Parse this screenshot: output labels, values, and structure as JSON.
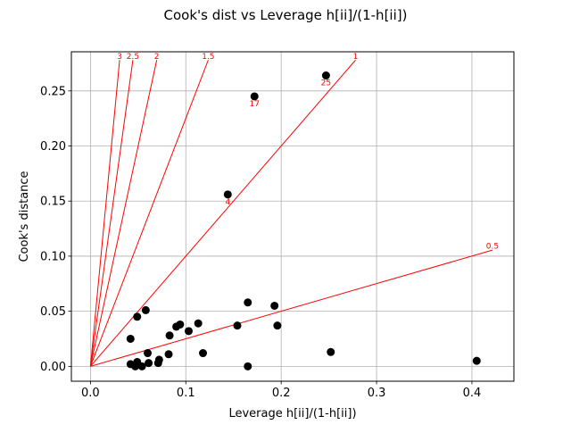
{
  "chart_data": {
    "type": "scatter",
    "title": "Cook's dist vs Leverage h[ii]/(1-h[ii])",
    "xlabel": "Leverage h[ii]/(1-h[ii])",
    "ylabel": "Cook's distance",
    "xlim": [
      -0.02,
      0.444
    ],
    "ylim": [
      -0.0135,
      0.2855
    ],
    "xticks": [
      0.0,
      0.1,
      0.2,
      0.3,
      0.4
    ],
    "xtick_labels": [
      "0.0",
      "0.1",
      "0.2",
      "0.3",
      "0.4"
    ],
    "yticks": [
      0.0,
      0.05,
      0.1,
      0.15,
      0.2,
      0.25
    ],
    "ytick_labels": [
      "0.00",
      "0.05",
      "0.10",
      "0.15",
      "0.20",
      "0.25"
    ],
    "grid": true,
    "point_color": "#000000",
    "line_color": "#ff0000",
    "points": [
      {
        "x": 0.405,
        "y": 0.005
      },
      {
        "x": 0.252,
        "y": 0.013
      },
      {
        "x": 0.247,
        "y": 0.264,
        "label": "25"
      },
      {
        "x": 0.196,
        "y": 0.037
      },
      {
        "x": 0.193,
        "y": 0.055
      },
      {
        "x": 0.172,
        "y": 0.245,
        "label": "17"
      },
      {
        "x": 0.165,
        "y": 0.058
      },
      {
        "x": 0.165,
        "y": 0.0
      },
      {
        "x": 0.154,
        "y": 0.037
      },
      {
        "x": 0.144,
        "y": 0.156,
        "label": "4"
      },
      {
        "x": 0.118,
        "y": 0.012
      },
      {
        "x": 0.113,
        "y": 0.039
      },
      {
        "x": 0.103,
        "y": 0.032
      },
      {
        "x": 0.094,
        "y": 0.038
      },
      {
        "x": 0.09,
        "y": 0.036
      },
      {
        "x": 0.083,
        "y": 0.028
      },
      {
        "x": 0.082,
        "y": 0.011
      },
      {
        "x": 0.072,
        "y": 0.006
      },
      {
        "x": 0.071,
        "y": 0.003
      },
      {
        "x": 0.06,
        "y": 0.012
      },
      {
        "x": 0.061,
        "y": 0.003
      },
      {
        "x": 0.058,
        "y": 0.051
      },
      {
        "x": 0.049,
        "y": 0.045
      },
      {
        "x": 0.054,
        "y": 0.0
      },
      {
        "x": 0.049,
        "y": 0.004
      },
      {
        "x": 0.047,
        "y": 0.0
      },
      {
        "x": 0.042,
        "y": 0.002
      },
      {
        "x": 0.042,
        "y": 0.025
      }
    ],
    "reference_lines": [
      {
        "label": "3",
        "x_end": 0.0306,
        "y_end": 0.278
      },
      {
        "label": "2.5",
        "x_end": 0.0445,
        "y_end": 0.278
      },
      {
        "label": "2",
        "x_end": 0.0695,
        "y_end": 0.278
      },
      {
        "label": "1.5",
        "x_end": 0.1235,
        "y_end": 0.278
      },
      {
        "label": "1",
        "x_end": 0.278,
        "y_end": 0.278
      },
      {
        "label": "0.5",
        "x_end": 0.4215,
        "y_end": 0.1055
      }
    ]
  }
}
